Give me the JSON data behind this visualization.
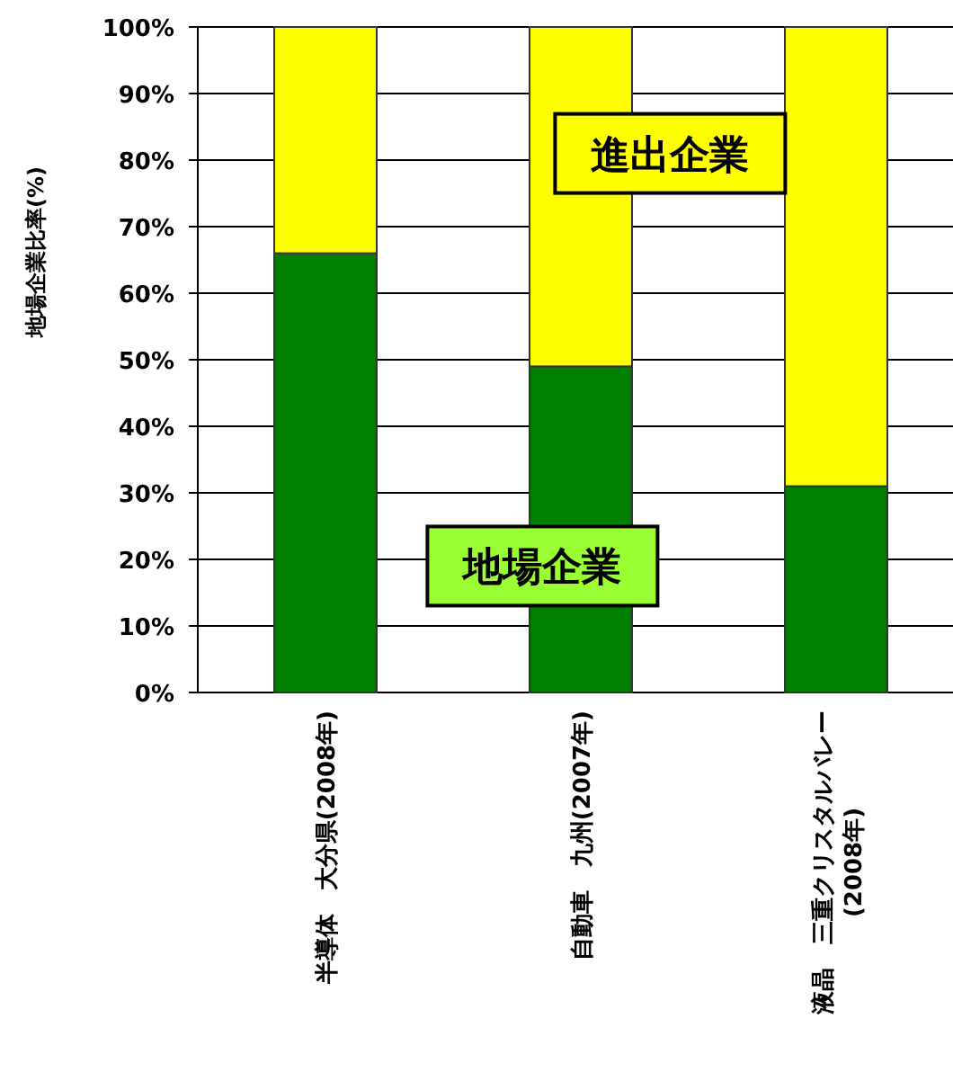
{
  "chart_data": {
    "type": "bar",
    "stacked": true,
    "ylabel": "地場企業比率(%)",
    "categories": [
      "半導体　大分県(2008年)",
      "自動車　九州(2007年)",
      "液晶　三重クリスタルバレー(2008年)"
    ],
    "series": [
      {
        "name": "地場企業",
        "color": "#008000",
        "values": [
          66,
          49,
          31
        ]
      },
      {
        "name": "進出企業",
        "color": "#ffff00",
        "values": [
          34,
          51,
          69
        ]
      }
    ],
    "ylim": [
      0,
      100
    ],
    "yticks": [
      {
        "value": 0,
        "label": "0%"
      },
      {
        "value": 10,
        "label": "10%"
      },
      {
        "value": 20,
        "label": "20%"
      },
      {
        "value": 30,
        "label": "30%"
      },
      {
        "value": 40,
        "label": "40%"
      },
      {
        "value": 50,
        "label": "50%"
      },
      {
        "value": 60,
        "label": "60%"
      },
      {
        "value": 70,
        "label": "70%"
      },
      {
        "value": 80,
        "label": "80%"
      },
      {
        "value": 90,
        "label": "90%"
      },
      {
        "value": 100,
        "label": "100%"
      }
    ],
    "grid": "y"
  }
}
